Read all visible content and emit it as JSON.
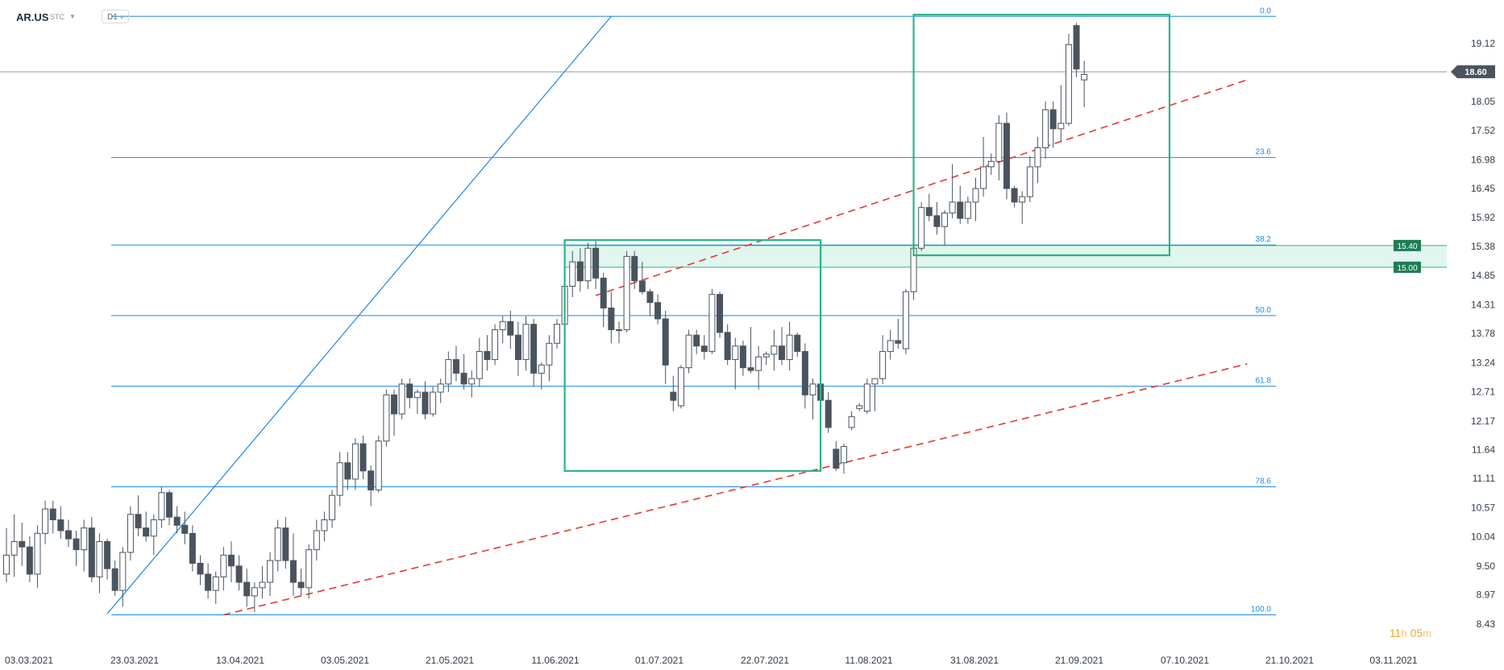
{
  "header": {
    "symbol": "AR.US",
    "subtitle": "STC",
    "timeframe": "D1"
  },
  "timer": {
    "hours": "11",
    "h_unit": "h",
    "minutes": "05",
    "m_unit": "m"
  },
  "colors": {
    "fib": "#1e88e5",
    "box": "#26b58a",
    "channel": "#e53935",
    "candle_dark": "#4a545f",
    "candle_light": "#ffffff",
    "axis_text": "#2f3b48",
    "price_tag": "#4a545f",
    "level_tag": "#1e7d55",
    "zone": "#c7efe0"
  },
  "chart_data": {
    "type": "candlestick",
    "title": "",
    "x_tick_labels": [
      "03.03.2021",
      "23.03.2021",
      "13.04.2021",
      "03.05.2021",
      "21.05.2021",
      "11.06.2021",
      "01.07.2021",
      "22.07.2021",
      "11.08.2021",
      "31.08.2021",
      "21.09.2021",
      "07.10.2021",
      "21.10.2021",
      "03.11.2021"
    ],
    "y_tick_labels": [
      "19.12",
      "18.05",
      "17.52",
      "16.98",
      "16.45",
      "15.92",
      "15.38",
      "14.85",
      "14.31",
      "13.78",
      "13.24",
      "12.71",
      "12.17",
      "11.64",
      "11.11",
      "10.57",
      "10.04",
      "9.50",
      "8.97",
      "8.43"
    ],
    "ylim": [
      8.3,
      19.9
    ],
    "current_price": 18.6,
    "fibonacci": {
      "high": 19.62,
      "low": 8.6,
      "levels": [
        {
          "ratio": 0.0,
          "label": "0.0"
        },
        {
          "ratio": 0.236,
          "label": "23.6"
        },
        {
          "ratio": 0.382,
          "label": "38.2"
        },
        {
          "ratio": 0.5,
          "label": "50.0"
        },
        {
          "ratio": 0.618,
          "label": "61.8"
        },
        {
          "ratio": 0.786,
          "label": "78.6"
        },
        {
          "ratio": 1.0,
          "label": "100.0"
        }
      ]
    },
    "support_zone": {
      "upper": 15.4,
      "lower": 15.0,
      "upper_label": "15.40",
      "lower_label": "15.00"
    },
    "trend_lines": [
      {
        "name": "channel-upper",
        "style": "dashed",
        "from": {
          "bar": 76,
          "price": 14.48
        },
        "to": {
          "bar": 160,
          "price": 18.45
        }
      },
      {
        "name": "channel-lower",
        "style": "dashed",
        "from": {
          "bar": 28,
          "price": 8.6
        },
        "to": {
          "bar": 160,
          "price": 13.22
        }
      },
      {
        "name": "rising-line",
        "style": "solid",
        "from": {
          "bar": 13,
          "price": 8.62
        },
        "to": {
          "bar": 78,
          "price": 19.62
        }
      }
    ],
    "boxes": [
      {
        "from_bar": 72,
        "to_bar": 105,
        "high": 15.5,
        "low": 11.25
      },
      {
        "from_bar": 117,
        "to_bar": 150,
        "high": 19.65,
        "low": 15.22
      }
    ],
    "series": [
      {
        "name": "",
        "type": "candlestick",
        "columns": [
          "open",
          "high",
          "low",
          "close"
        ],
        "ohlc": [
          [
            9.35,
            10.2,
            9.2,
            9.7
          ],
          [
            9.7,
            10.45,
            9.3,
            9.95
          ],
          [
            9.95,
            10.3,
            9.5,
            9.85
          ],
          [
            9.85,
            10.05,
            9.2,
            9.35
          ],
          [
            9.35,
            10.25,
            9.1,
            10.1
          ],
          [
            10.1,
            10.7,
            9.9,
            10.55
          ],
          [
            10.55,
            10.7,
            10.1,
            10.35
          ],
          [
            10.35,
            10.6,
            10.0,
            10.15
          ],
          [
            10.15,
            10.35,
            9.85,
            10.0
          ],
          [
            10.0,
            10.15,
            9.5,
            9.8
          ],
          [
            9.8,
            10.35,
            9.4,
            10.2
          ],
          [
            10.2,
            10.4,
            9.2,
            9.3
          ],
          [
            9.3,
            10.1,
            9.0,
            9.95
          ],
          [
            9.95,
            10.0,
            9.25,
            9.45
          ],
          [
            9.45,
            9.6,
            8.95,
            9.05
          ],
          [
            9.05,
            9.85,
            8.75,
            9.75
          ],
          [
            9.75,
            10.6,
            9.6,
            10.45
          ],
          [
            10.45,
            10.8,
            10.05,
            10.2
          ],
          [
            10.2,
            10.5,
            9.95,
            10.05
          ],
          [
            10.05,
            10.45,
            9.7,
            10.35
          ],
          [
            10.35,
            10.95,
            10.2,
            10.85
          ],
          [
            10.85,
            10.9,
            10.25,
            10.4
          ],
          [
            10.4,
            10.6,
            10.1,
            10.25
          ],
          [
            10.25,
            10.5,
            9.9,
            10.1
          ],
          [
            10.1,
            10.25,
            9.4,
            9.55
          ],
          [
            9.55,
            9.7,
            9.15,
            9.35
          ],
          [
            9.35,
            9.55,
            8.9,
            9.05
          ],
          [
            9.05,
            9.4,
            8.8,
            9.3
          ],
          [
            9.3,
            9.85,
            9.05,
            9.7
          ],
          [
            9.7,
            9.95,
            9.2,
            9.5
          ],
          [
            9.5,
            9.7,
            9.05,
            9.2
          ],
          [
            9.2,
            9.45,
            8.75,
            8.95
          ],
          [
            8.95,
            9.2,
            8.65,
            9.1
          ],
          [
            9.1,
            9.5,
            8.9,
            9.2
          ],
          [
            9.2,
            9.75,
            8.95,
            9.6
          ],
          [
            9.6,
            10.35,
            9.4,
            10.2
          ],
          [
            10.2,
            10.4,
            9.45,
            9.6
          ],
          [
            9.6,
            10.1,
            8.95,
            9.2
          ],
          [
            9.2,
            9.45,
            8.95,
            9.1
          ],
          [
            9.1,
            9.9,
            8.9,
            9.8
          ],
          [
            9.8,
            10.35,
            9.6,
            10.15
          ],
          [
            10.15,
            10.5,
            9.95,
            10.35
          ],
          [
            10.35,
            10.9,
            10.2,
            10.8
          ],
          [
            10.8,
            11.6,
            10.6,
            11.4
          ],
          [
            11.4,
            11.6,
            10.9,
            11.1
          ],
          [
            11.1,
            11.85,
            10.9,
            11.75
          ],
          [
            11.75,
            11.9,
            11.1,
            11.25
          ],
          [
            11.25,
            11.35,
            10.6,
            10.9
          ],
          [
            10.9,
            11.9,
            10.85,
            11.8
          ],
          [
            11.8,
            12.75,
            11.7,
            12.65
          ],
          [
            12.65,
            12.75,
            11.9,
            12.3
          ],
          [
            12.3,
            12.95,
            12.2,
            12.85
          ],
          [
            12.85,
            12.95,
            12.4,
            12.6
          ],
          [
            12.6,
            12.75,
            12.3,
            12.7
          ],
          [
            12.7,
            12.9,
            12.2,
            12.3
          ],
          [
            12.3,
            12.8,
            12.25,
            12.7
          ],
          [
            12.7,
            12.95,
            12.5,
            12.85
          ],
          [
            12.85,
            13.45,
            12.7,
            13.3
          ],
          [
            13.3,
            13.55,
            12.9,
            13.05
          ],
          [
            13.05,
            13.4,
            12.75,
            12.85
          ],
          [
            12.85,
            13.1,
            12.6,
            12.95
          ],
          [
            12.95,
            13.7,
            12.8,
            13.45
          ],
          [
            13.45,
            13.75,
            13.1,
            13.3
          ],
          [
            13.3,
            13.95,
            13.2,
            13.85
          ],
          [
            13.85,
            14.1,
            13.6,
            14.0
          ],
          [
            14.0,
            14.2,
            13.5,
            13.75
          ],
          [
            13.75,
            14.0,
            13.0,
            13.3
          ],
          [
            13.3,
            14.1,
            13.1,
            13.95
          ],
          [
            13.95,
            14.05,
            12.8,
            13.05
          ],
          [
            13.05,
            13.25,
            12.75,
            13.2
          ],
          [
            13.2,
            13.75,
            12.9,
            13.6
          ],
          [
            13.6,
            14.05,
            13.5,
            13.95
          ],
          [
            13.95,
            14.85,
            13.85,
            14.65
          ],
          [
            14.65,
            15.3,
            14.45,
            15.1
          ],
          [
            15.1,
            15.35,
            14.55,
            14.75
          ],
          [
            14.75,
            15.45,
            14.6,
            15.35
          ],
          [
            15.35,
            15.5,
            14.6,
            14.8
          ],
          [
            14.8,
            14.9,
            13.9,
            14.25
          ],
          [
            14.25,
            14.55,
            13.6,
            13.85
          ],
          [
            13.85,
            14.0,
            13.6,
            13.85
          ],
          [
            13.85,
            15.3,
            13.8,
            15.2
          ],
          [
            15.2,
            15.3,
            14.6,
            14.75
          ],
          [
            14.75,
            15.1,
            14.5,
            14.55
          ],
          [
            14.55,
            14.6,
            14.1,
            14.35
          ],
          [
            14.35,
            14.5,
            13.95,
            14.05
          ],
          [
            14.05,
            14.2,
            12.85,
            13.2
          ],
          [
            12.7,
            13.0,
            12.35,
            12.55
          ],
          [
            12.45,
            13.2,
            12.4,
            13.15
          ],
          [
            13.15,
            13.85,
            13.05,
            13.75
          ],
          [
            13.75,
            13.85,
            13.4,
            13.55
          ],
          [
            13.55,
            13.75,
            13.3,
            13.45
          ],
          [
            13.45,
            14.6,
            13.4,
            14.5
          ],
          [
            14.5,
            14.55,
            13.7,
            13.8
          ],
          [
            13.8,
            13.95,
            13.2,
            13.3
          ],
          [
            13.3,
            13.7,
            12.75,
            13.55
          ],
          [
            13.55,
            13.65,
            13.0,
            13.15
          ],
          [
            13.15,
            13.9,
            13.05,
            13.1
          ],
          [
            13.1,
            13.55,
            12.75,
            13.35
          ],
          [
            13.35,
            13.45,
            13.2,
            13.4
          ],
          [
            13.4,
            13.85,
            13.1,
            13.55
          ],
          [
            13.55,
            13.9,
            13.2,
            13.3
          ],
          [
            13.3,
            14.0,
            13.1,
            13.75
          ],
          [
            13.75,
            13.8,
            13.35,
            13.45
          ],
          [
            13.45,
            13.6,
            12.4,
            12.65
          ],
          [
            12.65,
            12.95,
            12.2,
            12.85
          ],
          [
            12.85,
            12.95,
            12.4,
            12.55
          ],
          [
            12.55,
            12.7,
            11.95,
            12.05
          ],
          [
            11.65,
            11.8,
            11.25,
            11.3
          ],
          [
            11.4,
            11.75,
            11.2,
            11.7
          ],
          [
            12.05,
            12.35,
            12.0,
            12.25
          ],
          [
            12.4,
            12.5,
            12.35,
            12.45
          ],
          [
            12.35,
            12.95,
            12.3,
            12.85
          ],
          [
            12.85,
            12.95,
            12.35,
            12.95
          ],
          [
            12.95,
            13.75,
            12.85,
            13.45
          ],
          [
            13.45,
            13.85,
            13.3,
            13.65
          ],
          [
            13.65,
            14.05,
            13.5,
            13.6
          ],
          [
            13.5,
            14.6,
            13.4,
            14.55
          ],
          [
            14.55,
            15.45,
            14.4,
            15.35
          ],
          [
            15.35,
            16.2,
            15.3,
            16.1
          ],
          [
            16.1,
            16.35,
            15.85,
            15.95
          ],
          [
            15.95,
            16.2,
            15.6,
            15.75
          ],
          [
            15.75,
            16.05,
            15.4,
            16.0
          ],
          [
            16.0,
            16.9,
            15.9,
            16.2
          ],
          [
            16.2,
            16.5,
            15.8,
            15.9
          ],
          [
            15.9,
            16.3,
            15.8,
            16.2
          ],
          [
            16.2,
            16.65,
            15.85,
            16.45
          ],
          [
            16.45,
            17.4,
            16.3,
            16.85
          ],
          [
            16.85,
            17.1,
            16.7,
            16.95
          ],
          [
            16.95,
            17.8,
            16.6,
            17.65
          ],
          [
            17.65,
            17.85,
            16.25,
            16.45
          ],
          [
            16.45,
            16.5,
            16.1,
            16.2
          ],
          [
            16.2,
            16.4,
            15.8,
            16.3
          ],
          [
            16.3,
            17.05,
            16.2,
            16.85
          ],
          [
            16.85,
            17.4,
            16.55,
            17.2
          ],
          [
            17.2,
            18.05,
            17.0,
            17.9
          ],
          [
            17.9,
            18.05,
            17.2,
            17.55
          ],
          [
            17.55,
            18.35,
            17.3,
            17.65
          ],
          [
            17.65,
            19.3,
            17.6,
            19.1
          ],
          [
            19.45,
            19.5,
            18.5,
            18.65
          ],
          [
            18.45,
            18.8,
            17.95,
            18.55
          ]
        ]
      }
    ]
  }
}
